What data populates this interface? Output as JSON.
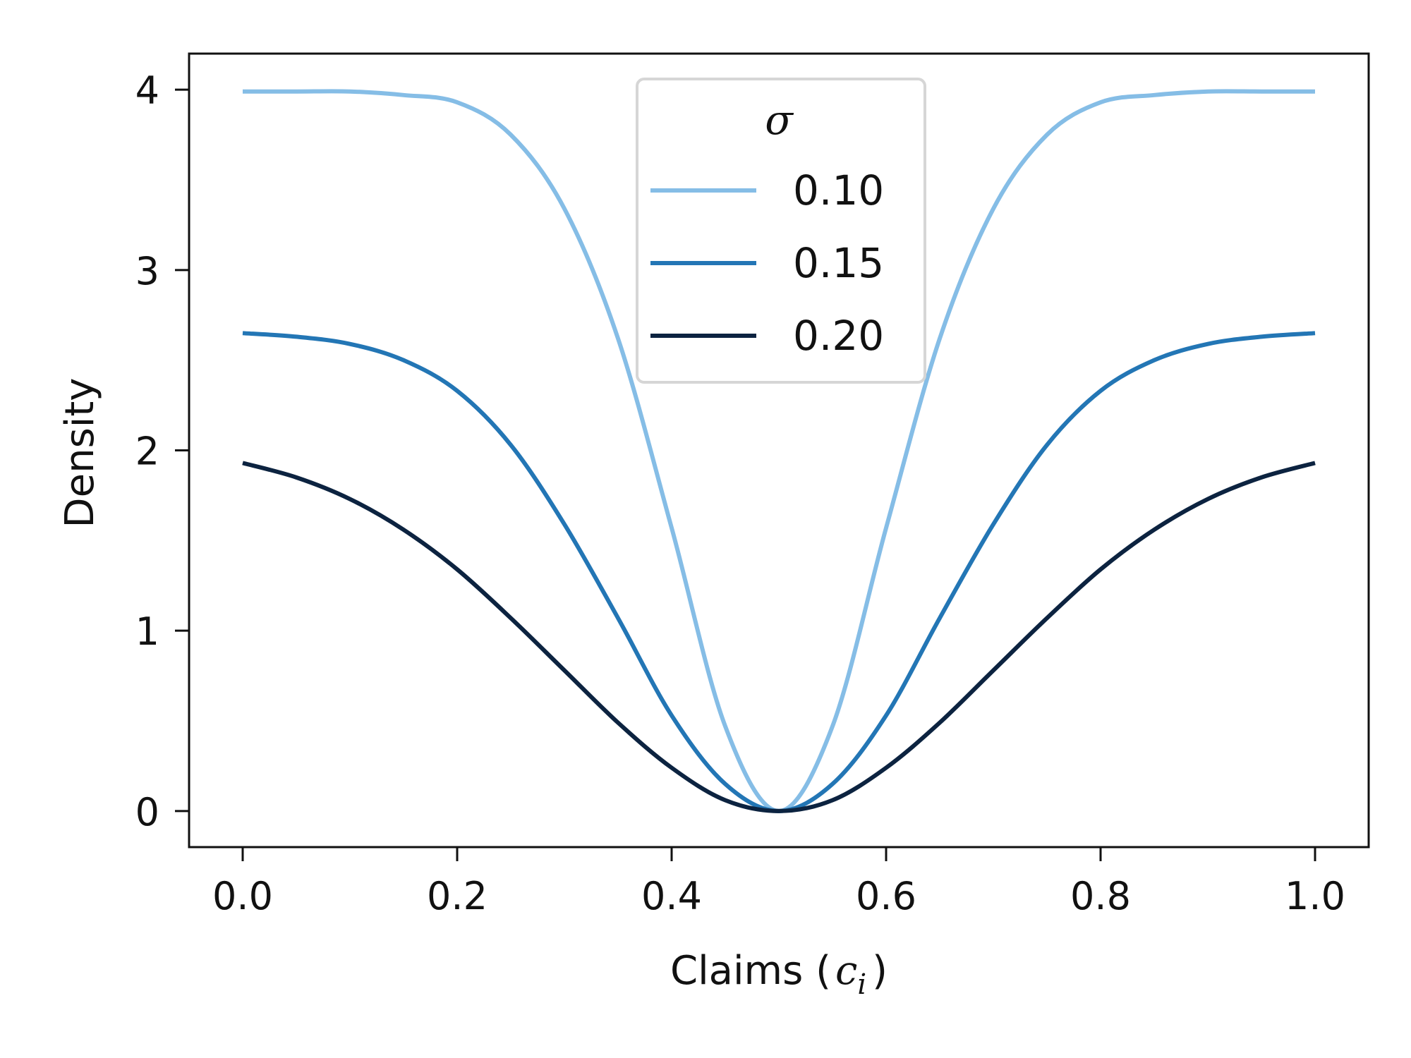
{
  "chart_data": {
    "type": "line",
    "xlabel": "Claims (",
    "xlabel_math_base": "c",
    "xlabel_math_sub": "i",
    "xlabel_close": ")",
    "ylabel": "Density",
    "xlim": [
      -0.05,
      1.05
    ],
    "ylim": [
      -0.2,
      4.2
    ],
    "x_ticks": [
      0.0,
      0.2,
      0.4,
      0.6,
      0.8,
      1.0
    ],
    "x_tick_labels": [
      "0.0",
      "0.2",
      "0.4",
      "0.6",
      "0.8",
      "1.0"
    ],
    "y_ticks": [
      0,
      1,
      2,
      3,
      4
    ],
    "y_tick_labels": [
      "0",
      "1",
      "2",
      "3",
      "4"
    ],
    "grid": false,
    "legend": {
      "title": "σ",
      "position": "top-center"
    },
    "series": [
      {
        "name": "0.10",
        "color": "#85bde6",
        "x": [
          0.0,
          0.05,
          0.1,
          0.15,
          0.2,
          0.25,
          0.3,
          0.35,
          0.4,
          0.45,
          0.5,
          0.55,
          0.6,
          0.65,
          0.7,
          0.75,
          0.8,
          0.85,
          0.9,
          0.95,
          1.0
        ],
        "y": [
          3.99,
          3.99,
          3.99,
          3.97,
          3.93,
          3.75,
          3.34,
          2.62,
          1.57,
          0.47,
          0.0,
          0.47,
          1.57,
          2.62,
          3.34,
          3.75,
          3.93,
          3.97,
          3.99,
          3.99,
          3.99
        ]
      },
      {
        "name": "0.15",
        "color": "#2376b5",
        "x": [
          0.0,
          0.05,
          0.1,
          0.15,
          0.2,
          0.25,
          0.3,
          0.35,
          0.4,
          0.45,
          0.5,
          0.55,
          0.6,
          0.65,
          0.7,
          0.75,
          0.8,
          0.85,
          0.9,
          0.95,
          1.0
        ],
        "y": [
          2.65,
          2.63,
          2.59,
          2.5,
          2.33,
          2.03,
          1.59,
          1.07,
          0.53,
          0.15,
          0.0,
          0.15,
          0.53,
          1.07,
          1.59,
          2.03,
          2.33,
          2.5,
          2.59,
          2.63,
          2.65
        ]
      },
      {
        "name": "0.20",
        "color": "#0c2340",
        "x": [
          0.0,
          0.05,
          0.1,
          0.15,
          0.2,
          0.25,
          0.3,
          0.35,
          0.4,
          0.45,
          0.5,
          0.55,
          0.6,
          0.65,
          0.7,
          0.75,
          0.8,
          0.85,
          0.9,
          0.95,
          1.0
        ],
        "y": [
          1.93,
          1.85,
          1.73,
          1.56,
          1.34,
          1.07,
          0.78,
          0.49,
          0.24,
          0.06,
          0.0,
          0.06,
          0.24,
          0.49,
          0.78,
          1.07,
          1.34,
          1.56,
          1.73,
          1.85,
          1.93
        ]
      }
    ]
  }
}
